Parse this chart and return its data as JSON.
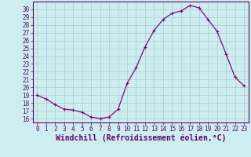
{
  "x": [
    0,
    1,
    2,
    3,
    4,
    5,
    6,
    7,
    8,
    9,
    10,
    11,
    12,
    13,
    14,
    15,
    16,
    17,
    18,
    19,
    20,
    21,
    22,
    23
  ],
  "y": [
    19.0,
    18.5,
    17.8,
    17.2,
    17.1,
    16.8,
    16.2,
    16.0,
    16.2,
    17.2,
    20.5,
    22.5,
    25.2,
    27.3,
    28.7,
    29.5,
    29.8,
    30.5,
    30.2,
    28.7,
    27.2,
    24.3,
    21.3,
    20.2
  ],
  "line_color": "#880088",
  "marker": "+",
  "marker_size": 3,
  "marker_linewidth": 0.8,
  "bg_color": "#cceef0",
  "grid_color": "#aacccc",
  "xlabel": "Windchill (Refroidissement éolien,°C)",
  "xlim": [
    -0.5,
    23.5
  ],
  "ylim": [
    15.5,
    31.0
  ],
  "yticks": [
    16,
    17,
    18,
    19,
    20,
    21,
    22,
    23,
    24,
    25,
    26,
    27,
    28,
    29,
    30
  ],
  "xticks": [
    0,
    1,
    2,
    3,
    4,
    5,
    6,
    7,
    8,
    9,
    10,
    11,
    12,
    13,
    14,
    15,
    16,
    17,
    18,
    19,
    20,
    21,
    22,
    23
  ],
  "tick_label_size": 5.5,
  "xlabel_size": 7.0,
  "axis_color": "#660066",
  "spine_color": "#660066",
  "line_width": 0.9
}
